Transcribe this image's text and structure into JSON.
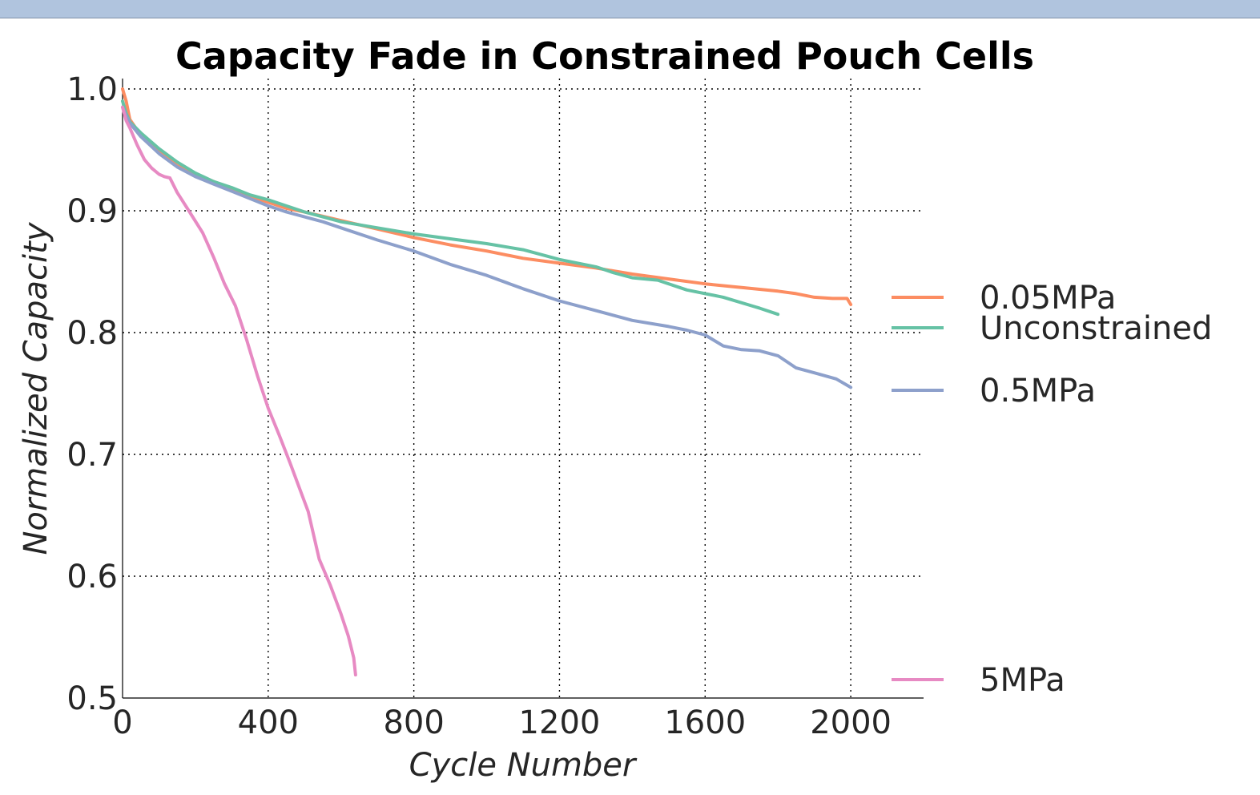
{
  "chart_data": {
    "type": "line",
    "title": "Capacity Fade in Constrained Pouch Cells",
    "xlabel": "Cycle Number",
    "ylabel": "Normalized Capacity",
    "xlim": [
      0,
      2200
    ],
    "ylim": [
      0.5,
      1.0
    ],
    "xticks": [
      0,
      400,
      800,
      1200,
      1600,
      2000
    ],
    "xtick_labels": [
      "0",
      "400",
      "800",
      "1200",
      "1600",
      "2000"
    ],
    "yticks": [
      0.5,
      0.6,
      0.7,
      0.8,
      0.9,
      1.0
    ],
    "ytick_labels": [
      "0.5",
      "0.6",
      "0.7",
      "0.8",
      "0.9",
      "1.0"
    ],
    "grid": true,
    "legend_position": "right",
    "series": [
      {
        "name": "0.05MPa",
        "color": "#fc8d62",
        "x": [
          0,
          10,
          20,
          50,
          100,
          150,
          200,
          250,
          300,
          350,
          400,
          450,
          500,
          600,
          700,
          800,
          900,
          1000,
          1100,
          1200,
          1300,
          1400,
          1500,
          1600,
          1700,
          1800,
          1850,
          1900,
          1950,
          1990,
          2000
        ],
        "y": [
          1.0,
          0.99,
          0.975,
          0.962,
          0.948,
          0.937,
          0.93,
          0.924,
          0.918,
          0.912,
          0.907,
          0.902,
          0.899,
          0.892,
          0.885,
          0.878,
          0.872,
          0.867,
          0.861,
          0.857,
          0.853,
          0.848,
          0.844,
          0.84,
          0.837,
          0.834,
          0.832,
          0.829,
          0.828,
          0.828,
          0.823
        ]
      },
      {
        "name": "Unconstrained",
        "color": "#66c2a5",
        "x": [
          0,
          10,
          20,
          50,
          100,
          150,
          200,
          250,
          300,
          350,
          400,
          450,
          500,
          600,
          700,
          800,
          900,
          1000,
          1100,
          1200,
          1300,
          1350,
          1400,
          1470,
          1550,
          1650,
          1750,
          1800
        ],
        "y": [
          0.99,
          0.98,
          0.973,
          0.964,
          0.951,
          0.94,
          0.931,
          0.924,
          0.919,
          0.913,
          0.909,
          0.904,
          0.899,
          0.891,
          0.886,
          0.881,
          0.877,
          0.873,
          0.868,
          0.86,
          0.854,
          0.849,
          0.845,
          0.843,
          0.835,
          0.829,
          0.82,
          0.815
        ]
      },
      {
        "name": "0.5MPa",
        "color": "#8da0cb",
        "x": [
          0,
          10,
          20,
          50,
          100,
          150,
          200,
          250,
          300,
          350,
          400,
          450,
          500,
          550,
          600,
          700,
          800,
          900,
          1000,
          1100,
          1200,
          1300,
          1400,
          1500,
          1550,
          1600,
          1650,
          1700,
          1750,
          1800,
          1850,
          1900,
          1960,
          2000
        ],
        "y": [
          0.985,
          0.978,
          0.972,
          0.961,
          0.947,
          0.936,
          0.928,
          0.922,
          0.916,
          0.91,
          0.904,
          0.899,
          0.895,
          0.891,
          0.886,
          0.876,
          0.867,
          0.856,
          0.847,
          0.836,
          0.826,
          0.818,
          0.81,
          0.805,
          0.802,
          0.798,
          0.789,
          0.786,
          0.785,
          0.781,
          0.771,
          0.767,
          0.762,
          0.755
        ]
      },
      {
        "name": "5MPa",
        "color": "#e78ac3",
        "x": [
          0,
          10,
          20,
          40,
          60,
          80,
          100,
          115,
          130,
          150,
          180,
          220,
          250,
          280,
          310,
          340,
          370,
          400,
          430,
          460,
          490,
          510,
          540,
          570,
          600,
          620,
          635,
          640
        ],
        "y": [
          0.985,
          0.974,
          0.968,
          0.954,
          0.942,
          0.935,
          0.93,
          0.928,
          0.927,
          0.915,
          0.901,
          0.882,
          0.862,
          0.84,
          0.822,
          0.795,
          0.765,
          0.738,
          0.716,
          0.693,
          0.669,
          0.653,
          0.614,
          0.593,
          0.569,
          0.551,
          0.533,
          0.519
        ]
      }
    ]
  }
}
